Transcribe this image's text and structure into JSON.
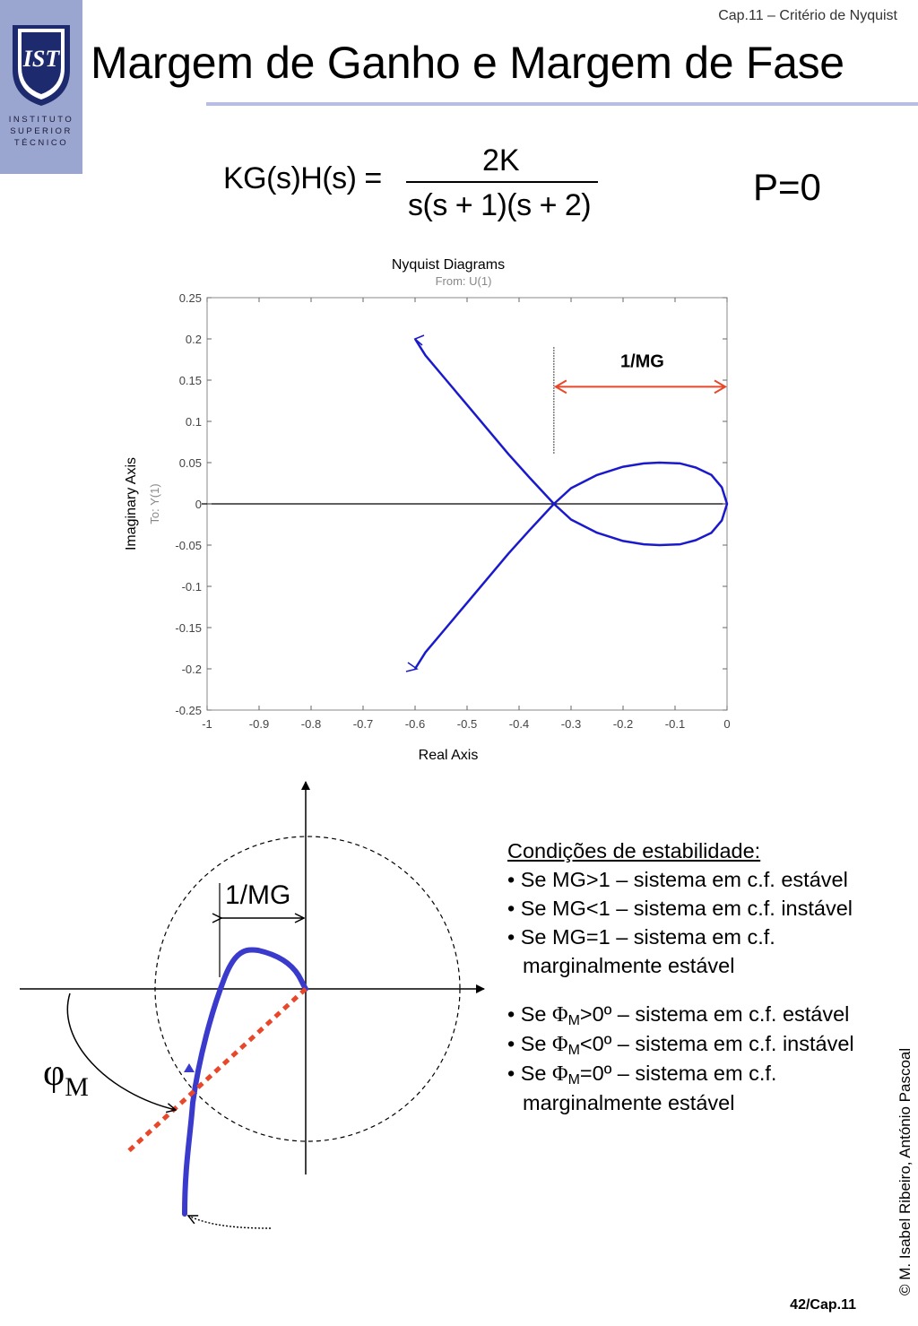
{
  "header": {
    "chapter": "Cap.11 – Critério de Nyquist",
    "title": "Margem de Ganho e Margem de Fase",
    "logo_lines": [
      "INSTITUTO",
      "SUPERIOR",
      "TÉCNICO"
    ],
    "logo_mark": "IST"
  },
  "equation": {
    "lhs": "KG(s)H(s) =",
    "numerator": "2K",
    "denominator": "s(s + 1)(s + 2)"
  },
  "p_label": "P=0",
  "chart_data": {
    "type": "line",
    "title": "Nyquist Diagrams",
    "subtitle": "From: U(1)",
    "xlabel": "Real Axis",
    "ylabel": "Imaginary Axis",
    "ylabel_secondary": "To: Y(1)",
    "xlim": [
      -1,
      0
    ],
    "ylim": [
      -0.25,
      0.25
    ],
    "xticks": [
      -1,
      -0.9,
      -0.8,
      -0.7,
      -0.6,
      -0.5,
      -0.4,
      -0.3,
      -0.2,
      -0.1,
      0
    ],
    "xtick_labels": [
      "-1",
      "-0.9",
      "-0.8",
      "-0.7",
      "-0.6",
      "-0.5",
      "-0.4",
      "-0.3",
      "-0.2",
      "-0.1",
      "0"
    ],
    "yticks": [
      0.25,
      0.2,
      0.15,
      0.1,
      0.05,
      0,
      -0.05,
      -0.1,
      -0.15,
      -0.2,
      -0.25
    ],
    "ytick_labels": [
      "0.25",
      "0.2",
      "0.15",
      "0.1",
      "0.05",
      "0",
      "-0.05",
      "-0.1",
      "-0.15",
      "-0.2",
      "-0.25"
    ],
    "series": [
      {
        "color": "#1a1acc",
        "x": [
          -0.6,
          -0.58,
          -0.54,
          -0.5,
          -0.46,
          -0.42,
          -0.38,
          -0.333,
          -0.3,
          -0.25,
          -0.2,
          -0.16,
          -0.13,
          -0.09,
          -0.06,
          -0.03,
          -0.01,
          0
        ],
        "y": [
          0.2,
          0.18,
          0.15,
          0.12,
          0.09,
          0.06,
          0.032,
          0,
          0.019,
          0.035,
          0.045,
          0.049,
          0.05,
          0.049,
          0.044,
          0.035,
          0.02,
          0
        ]
      }
    ],
    "annotation": {
      "label": "1/MG",
      "x_from": -0.333,
      "x_to": 0,
      "color": "#e8472a"
    },
    "grid": false
  },
  "sketch": {
    "mg_label": "1/MG",
    "phi_symbol": "φ",
    "phi_subscript": "M",
    "curve_color": "#3a3acc",
    "phase_line_color": "#e8472a"
  },
  "conditions": {
    "title": "Condições de estabilidade:",
    "mg_items": [
      "• Se MG>1 – sistema em c.f. estável",
      "• Se MG<1 – sistema em c.f. instável",
      "• Se MG=1 – sistema em c.f. marginalmente estável"
    ],
    "pm_items": [
      {
        "prefix": "• Se ",
        "symbol": "Φ",
        "sub": "M",
        "rest": ">0º – sistema em c.f. estável"
      },
      {
        "prefix": "• Se ",
        "symbol": "Φ",
        "sub": "M",
        "rest": "<0º – sistema em c.f. instável"
      },
      {
        "prefix": "• Se ",
        "symbol": "Φ",
        "sub": "M",
        "rest": "=0º – sistema em c.f. marginalmente estável"
      }
    ]
  },
  "footer": {
    "copyright": "© M. Isabel Ribeiro, António Pascoal",
    "page_number": "42/Cap.11"
  }
}
